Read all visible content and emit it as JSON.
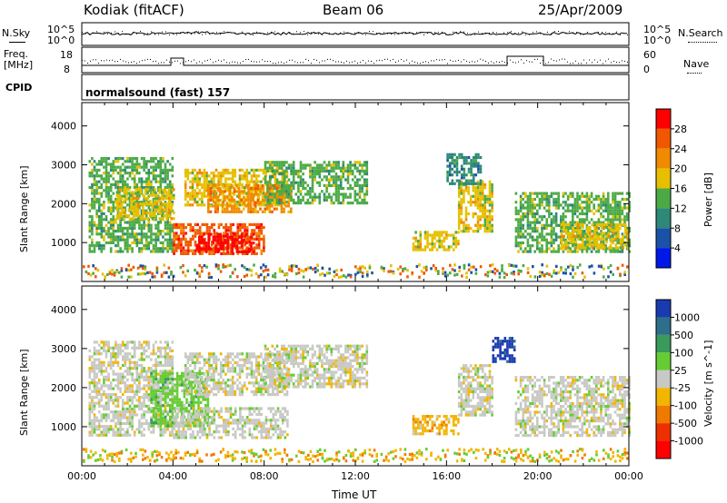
{
  "header": {
    "station": "Kodiak (fitACF)",
    "beam": "Beam 06",
    "date": "25/Apr/2009"
  },
  "noise_panel": {
    "left_label": "N.Sky",
    "right_label": "N.Search",
    "left_ticks": [
      "10^5",
      "10^0"
    ],
    "right_ticks": [
      "10^5",
      "10^0"
    ]
  },
  "freq_panel": {
    "left_label_1": "Freq.",
    "left_label_2": "[MHz]",
    "right_label": "Nave",
    "left_ticks": [
      "18",
      "8"
    ],
    "right_ticks": [
      "60",
      "0"
    ]
  },
  "cpid": {
    "label": "CPID",
    "program": "normalsound (fast) 157"
  },
  "chart_data": [
    {
      "type": "heatmap",
      "quantity": "Power",
      "ylabel": "Slant Range [km]",
      "colorbar_label": "Power [dB]",
      "ylim": [
        0,
        4600
      ],
      "y_ticks": [
        "1000",
        "2000",
        "3000",
        "4000"
      ],
      "colorbar_ticks": [
        "4",
        "8",
        "12",
        "16",
        "20",
        "24",
        "28"
      ],
      "colors": [
        "#0018e8",
        "#1a52a8",
        "#2d8878",
        "#4caa46",
        "#e6c000",
        "#f08a00",
        "#f05800",
        "#ff0000"
      ],
      "regions": [
        {
          "t": [
            0.3,
            4.0
          ],
          "r": [
            800,
            3200
          ],
          "level": 3
        },
        {
          "t": [
            1.5,
            4.0
          ],
          "r": [
            1600,
            2400
          ],
          "level": 4
        },
        {
          "t": [
            4.5,
            9.0
          ],
          "r": [
            2000,
            2900
          ],
          "level": 4
        },
        {
          "t": [
            5.5,
            9.2
          ],
          "r": [
            1800,
            2500
          ],
          "level": 5
        },
        {
          "t": [
            4.0,
            8.0
          ],
          "r": [
            700,
            1500
          ],
          "level": 6
        },
        {
          "t": [
            5.0,
            7.5
          ],
          "r": [
            750,
            1250
          ],
          "level": 7
        },
        {
          "t": [
            8.0,
            12.5
          ],
          "r": [
            2000,
            3100
          ],
          "level": 3
        },
        {
          "t": [
            14.5,
            16.5
          ],
          "r": [
            800,
            1300
          ],
          "level": 4
        },
        {
          "t": [
            16.5,
            18.0
          ],
          "r": [
            1300,
            2600
          ],
          "level": 4
        },
        {
          "t": [
            16.0,
            17.5
          ],
          "r": [
            2500,
            3300
          ],
          "level": 2
        },
        {
          "t": [
            19.0,
            24.0
          ],
          "r": [
            800,
            2300
          ],
          "level": 3
        },
        {
          "t": [
            21.0,
            24.0
          ],
          "r": [
            900,
            1500
          ],
          "level": 4
        }
      ]
    },
    {
      "type": "heatmap",
      "quantity": "Velocity",
      "ylabel": "Slant Range [km]",
      "colorbar_label": "Velocity [m s^-1]",
      "ylim": [
        0,
        4600
      ],
      "y_ticks": [
        "1000",
        "2000",
        "3000",
        "4000"
      ],
      "x_ticks": [
        "00:00",
        "04:00",
        "08:00",
        "12:00",
        "16:00",
        "20:00",
        "00:00"
      ],
      "xlabel": "Time UT",
      "colorbar_ticks": [
        "1000",
        "500",
        "100",
        "25",
        "-25",
        "-100",
        "-500",
        "-1000"
      ],
      "colors": [
        "#1a3ab0",
        "#2d6e8a",
        "#3a9a5a",
        "#66cc33",
        "#c8c8c4",
        "#f2b600",
        "#f07a00",
        "#ee3000",
        "#ff0000"
      ],
      "regions": [
        {
          "t": [
            0.3,
            4.0
          ],
          "r": [
            800,
            3200
          ],
          "level": 4
        },
        {
          "t": [
            3.0,
            5.5
          ],
          "r": [
            1000,
            2400
          ],
          "level": 3
        },
        {
          "t": [
            4.5,
            9.0
          ],
          "r": [
            1800,
            2900
          ],
          "level": 4
        },
        {
          "t": [
            4.0,
            9.0
          ],
          "r": [
            700,
            1500
          ],
          "level": 4
        },
        {
          "t": [
            8.0,
            12.5
          ],
          "r": [
            2000,
            3100
          ],
          "level": 4
        },
        {
          "t": [
            14.5,
            16.5
          ],
          "r": [
            800,
            1300
          ],
          "level": 5
        },
        {
          "t": [
            16.5,
            18.0
          ],
          "r": [
            1300,
            2600
          ],
          "level": 4
        },
        {
          "t": [
            19.0,
            24.0
          ],
          "r": [
            800,
            2300
          ],
          "level": 4
        },
        {
          "t": [
            18.0,
            19.0
          ],
          "r": [
            2700,
            3300
          ],
          "level": 0
        }
      ]
    }
  ]
}
